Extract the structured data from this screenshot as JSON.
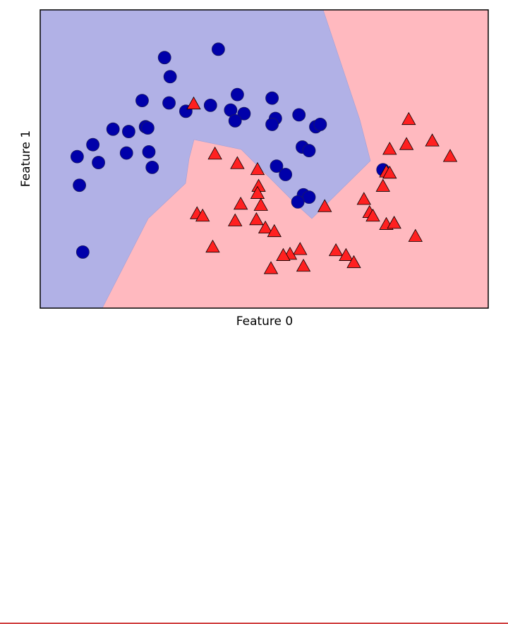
{
  "chart_data": {
    "type": "scatter",
    "xlabel": "Feature 0",
    "ylabel": "Feature 1",
    "xlim": [
      -1.5,
      2.5
    ],
    "ylim": [
      -1,
      1.5
    ],
    "series": [
      {
        "color": "#0000aa",
        "marker": "circle",
        "x": [
          -0.39,
          0.09,
          -0.34,
          -0.59,
          -0.35,
          -0.2,
          0.02,
          0.26,
          0.2,
          0.32,
          0.24,
          0.57,
          0.6,
          0.57,
          0.81,
          0.96,
          1.0,
          -0.85,
          -0.71,
          -0.56,
          -0.54,
          -1.03,
          -1.17,
          -0.98,
          -0.73,
          -0.53,
          -0.5,
          -1.15,
          0.84,
          0.9,
          0.61,
          0.69,
          0.85,
          0.9,
          0.8,
          1.56,
          -1.12
        ],
        "y": [
          1.1,
          1.17,
          0.94,
          0.74,
          0.72,
          0.65,
          0.7,
          0.79,
          0.66,
          0.63,
          0.57,
          0.76,
          0.59,
          0.54,
          0.62,
          0.52,
          0.54,
          0.5,
          0.48,
          0.52,
          0.51,
          0.37,
          0.27,
          0.22,
          0.3,
          0.31,
          0.18,
          0.03,
          0.35,
          0.32,
          0.19,
          0.12,
          -0.05,
          -0.07,
          -0.11,
          0.16,
          -0.53
        ]
      },
      {
        "color": "#ff2020",
        "marker": "triangle",
        "x": [
          -0.13,
          1.79,
          0.06,
          0.26,
          0.44,
          1.62,
          1.77,
          2.0,
          2.16,
          1.59,
          1.62,
          1.56,
          0.45,
          0.44,
          0.29,
          0.47,
          1.04,
          1.39,
          -0.1,
          -0.05,
          1.44,
          1.47,
          0.24,
          0.43,
          0.51,
          0.59,
          1.59,
          1.66,
          1.85,
          0.04,
          0.82,
          0.73,
          0.67,
          1.14,
          1.23,
          1.3,
          0.56,
          0.85
        ],
        "y": [
          0.71,
          0.58,
          0.29,
          0.21,
          0.16,
          0.33,
          0.37,
          0.4,
          0.27,
          0.14,
          0.13,
          0.02,
          0.02,
          -0.04,
          -0.13,
          -0.14,
          -0.15,
          -0.09,
          -0.21,
          -0.23,
          -0.2,
          -0.23,
          -0.27,
          -0.26,
          -0.33,
          -0.36,
          -0.3,
          -0.29,
          -0.4,
          -0.49,
          -0.51,
          -0.55,
          -0.56,
          -0.52,
          -0.56,
          -0.62,
          -0.67,
          -0.65
        ]
      }
    ]
  }
}
